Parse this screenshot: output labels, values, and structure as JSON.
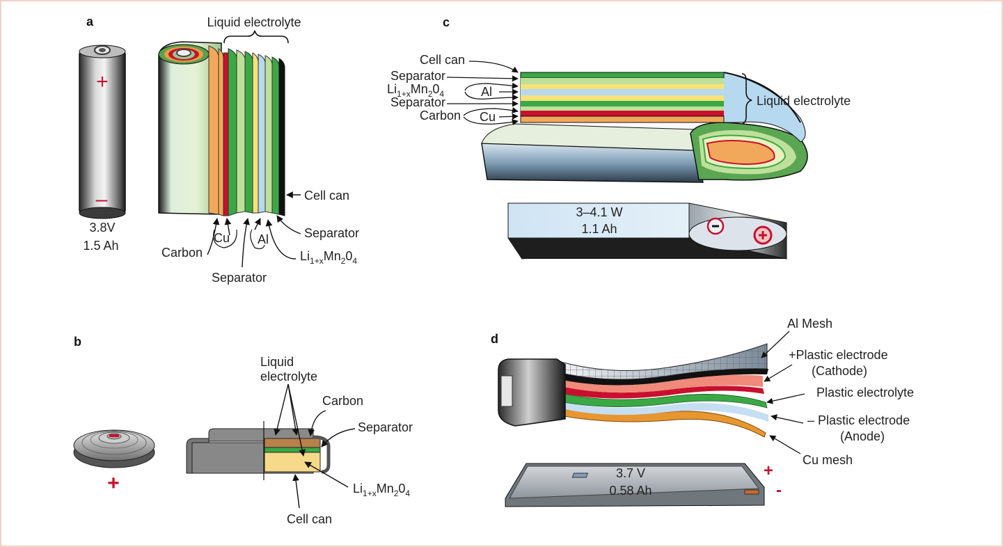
{
  "panels": {
    "a": {
      "letter": "a",
      "battery_rating": [
        "3.8V",
        "1.5 Ah"
      ],
      "plus_sign": "+",
      "minus_sign": "–",
      "labels": {
        "liquid_electrolyte": "Liquid electrolyte",
        "cell_can": "Cell can",
        "separator_right": "Separator",
        "cu": "Cu",
        "al": "Al",
        "carbon": "Carbon",
        "li_main": "Li",
        "li_sub": "1+x",
        "mn": "Mn",
        "mn_sub": "2",
        "o": "0",
        "o_sub": "4",
        "separator_bottom": "Separator"
      }
    },
    "b": {
      "letter": "b",
      "plus_sign": "+",
      "labels": {
        "liquid_electrolyte_1": "Liquid",
        "liquid_electrolyte_2": "electrolyte",
        "carbon": "Carbon",
        "separator": "Separator",
        "li_main": "Li",
        "li_sub": "1+x",
        "mn": "Mn",
        "mn_sub": "2",
        "o": "0",
        "o_sub": "4",
        "cell_can": "Cell can"
      }
    },
    "c": {
      "letter": "c",
      "rating": [
        "3–4.1 W",
        "1.1 Ah"
      ],
      "labels": {
        "cell_can": "Cell can",
        "separator_1": "Separator",
        "li_main": "Li",
        "li_sub": "1+x",
        "mn": "Mn",
        "mn_sub": "2",
        "o": "0",
        "o_sub": "4",
        "al": "Al",
        "separator_2": "Separator",
        "carbon": "Carbon",
        "cu": "Cu",
        "liquid_electrolyte": "Liquid electrolyte"
      }
    },
    "d": {
      "letter": "d",
      "rating": [
        "3.7 V",
        "0.58 Ah"
      ],
      "plus_sign": "+",
      "minus_sign": "-",
      "labels": {
        "al_mesh": "Al Mesh",
        "cathode_1": "+Plastic electrode",
        "cathode_2": "(Cathode)",
        "plastic_electrolyte": "Plastic electrolyte",
        "anode_1": "– Plastic electrode",
        "anode_2": "(Anode)",
        "cu_mesh": "Cu mesh"
      }
    }
  },
  "colors": {
    "anode_orange": "#f2a85a",
    "separator_green": "#3aa845",
    "copper_red": "#c8102e",
    "cathode_lightgreen": "#bfe09a",
    "al_blue": "#b7d9ef",
    "electrolyte_yellow": "#f7e27a",
    "can_black": "#111111",
    "sign_red": "#c8102e"
  }
}
